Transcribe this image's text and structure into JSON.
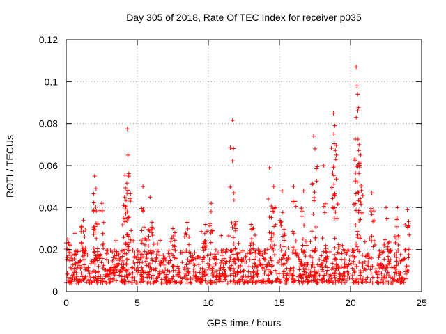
{
  "chart_data": {
    "type": "scatter",
    "title": "Day 305 of 2018, Rate Of TEC Index for receiver p035",
    "xlabel": "GPS time / hours",
    "ylabel": "ROTI / TECUs",
    "xlim": [
      0,
      25
    ],
    "ylim": [
      0,
      0.12
    ],
    "xticks": [
      0,
      5,
      10,
      15,
      20,
      25
    ],
    "yticks": [
      0,
      0.02,
      0.04,
      0.06,
      0.08,
      0.1,
      0.12
    ],
    "xtick_labels": [
      "0",
      "5",
      "10",
      "15",
      "20",
      "25"
    ],
    "ytick_labels": [
      "0",
      "0.02",
      "0.04",
      "0.06",
      "0.08",
      "0.1",
      "0.12"
    ],
    "grid": true,
    "marker": "+",
    "color": "#ff0000",
    "series": [
      {
        "name": "ROTI",
        "x_range": [
          0,
          24.1
        ],
        "typical_band": [
          0.004,
          0.02
        ],
        "peaks": [
          {
            "x": 0.1,
            "y": 0.025
          },
          {
            "x": 1.2,
            "y": 0.034
          },
          {
            "x": 2.0,
            "y": 0.055
          },
          {
            "x": 2.1,
            "y": 0.049
          },
          {
            "x": 2.5,
            "y": 0.042
          },
          {
            "x": 4.3,
            "y": 0.0775
          },
          {
            "x": 4.35,
            "y": 0.065
          },
          {
            "x": 4.4,
            "y": 0.055
          },
          {
            "x": 4.1,
            "y": 0.045
          },
          {
            "x": 5.4,
            "y": 0.05
          },
          {
            "x": 5.9,
            "y": 0.045
          },
          {
            "x": 7.5,
            "y": 0.03
          },
          {
            "x": 8.5,
            "y": 0.033
          },
          {
            "x": 9.8,
            "y": 0.032
          },
          {
            "x": 10.2,
            "y": 0.042
          },
          {
            "x": 11.7,
            "y": 0.0815
          },
          {
            "x": 11.8,
            "y": 0.047
          },
          {
            "x": 13.0,
            "y": 0.032
          },
          {
            "x": 14.3,
            "y": 0.059
          },
          {
            "x": 14.6,
            "y": 0.05
          },
          {
            "x": 15.2,
            "y": 0.048
          },
          {
            "x": 16.0,
            "y": 0.05
          },
          {
            "x": 16.7,
            "y": 0.048
          },
          {
            "x": 17.4,
            "y": 0.074
          },
          {
            "x": 17.5,
            "y": 0.068
          },
          {
            "x": 18.1,
            "y": 0.06
          },
          {
            "x": 18.8,
            "y": 0.085
          },
          {
            "x": 18.9,
            "y": 0.079
          },
          {
            "x": 19.0,
            "y": 0.065
          },
          {
            "x": 20.4,
            "y": 0.107
          },
          {
            "x": 20.45,
            "y": 0.098
          },
          {
            "x": 20.5,
            "y": 0.094
          },
          {
            "x": 20.4,
            "y": 0.083
          },
          {
            "x": 20.6,
            "y": 0.07
          },
          {
            "x": 20.7,
            "y": 0.065
          },
          {
            "x": 21.5,
            "y": 0.047
          },
          {
            "x": 22.5,
            "y": 0.04
          },
          {
            "x": 23.3,
            "y": 0.04
          },
          {
            "x": 24.0,
            "y": 0.039
          }
        ]
      }
    ]
  }
}
